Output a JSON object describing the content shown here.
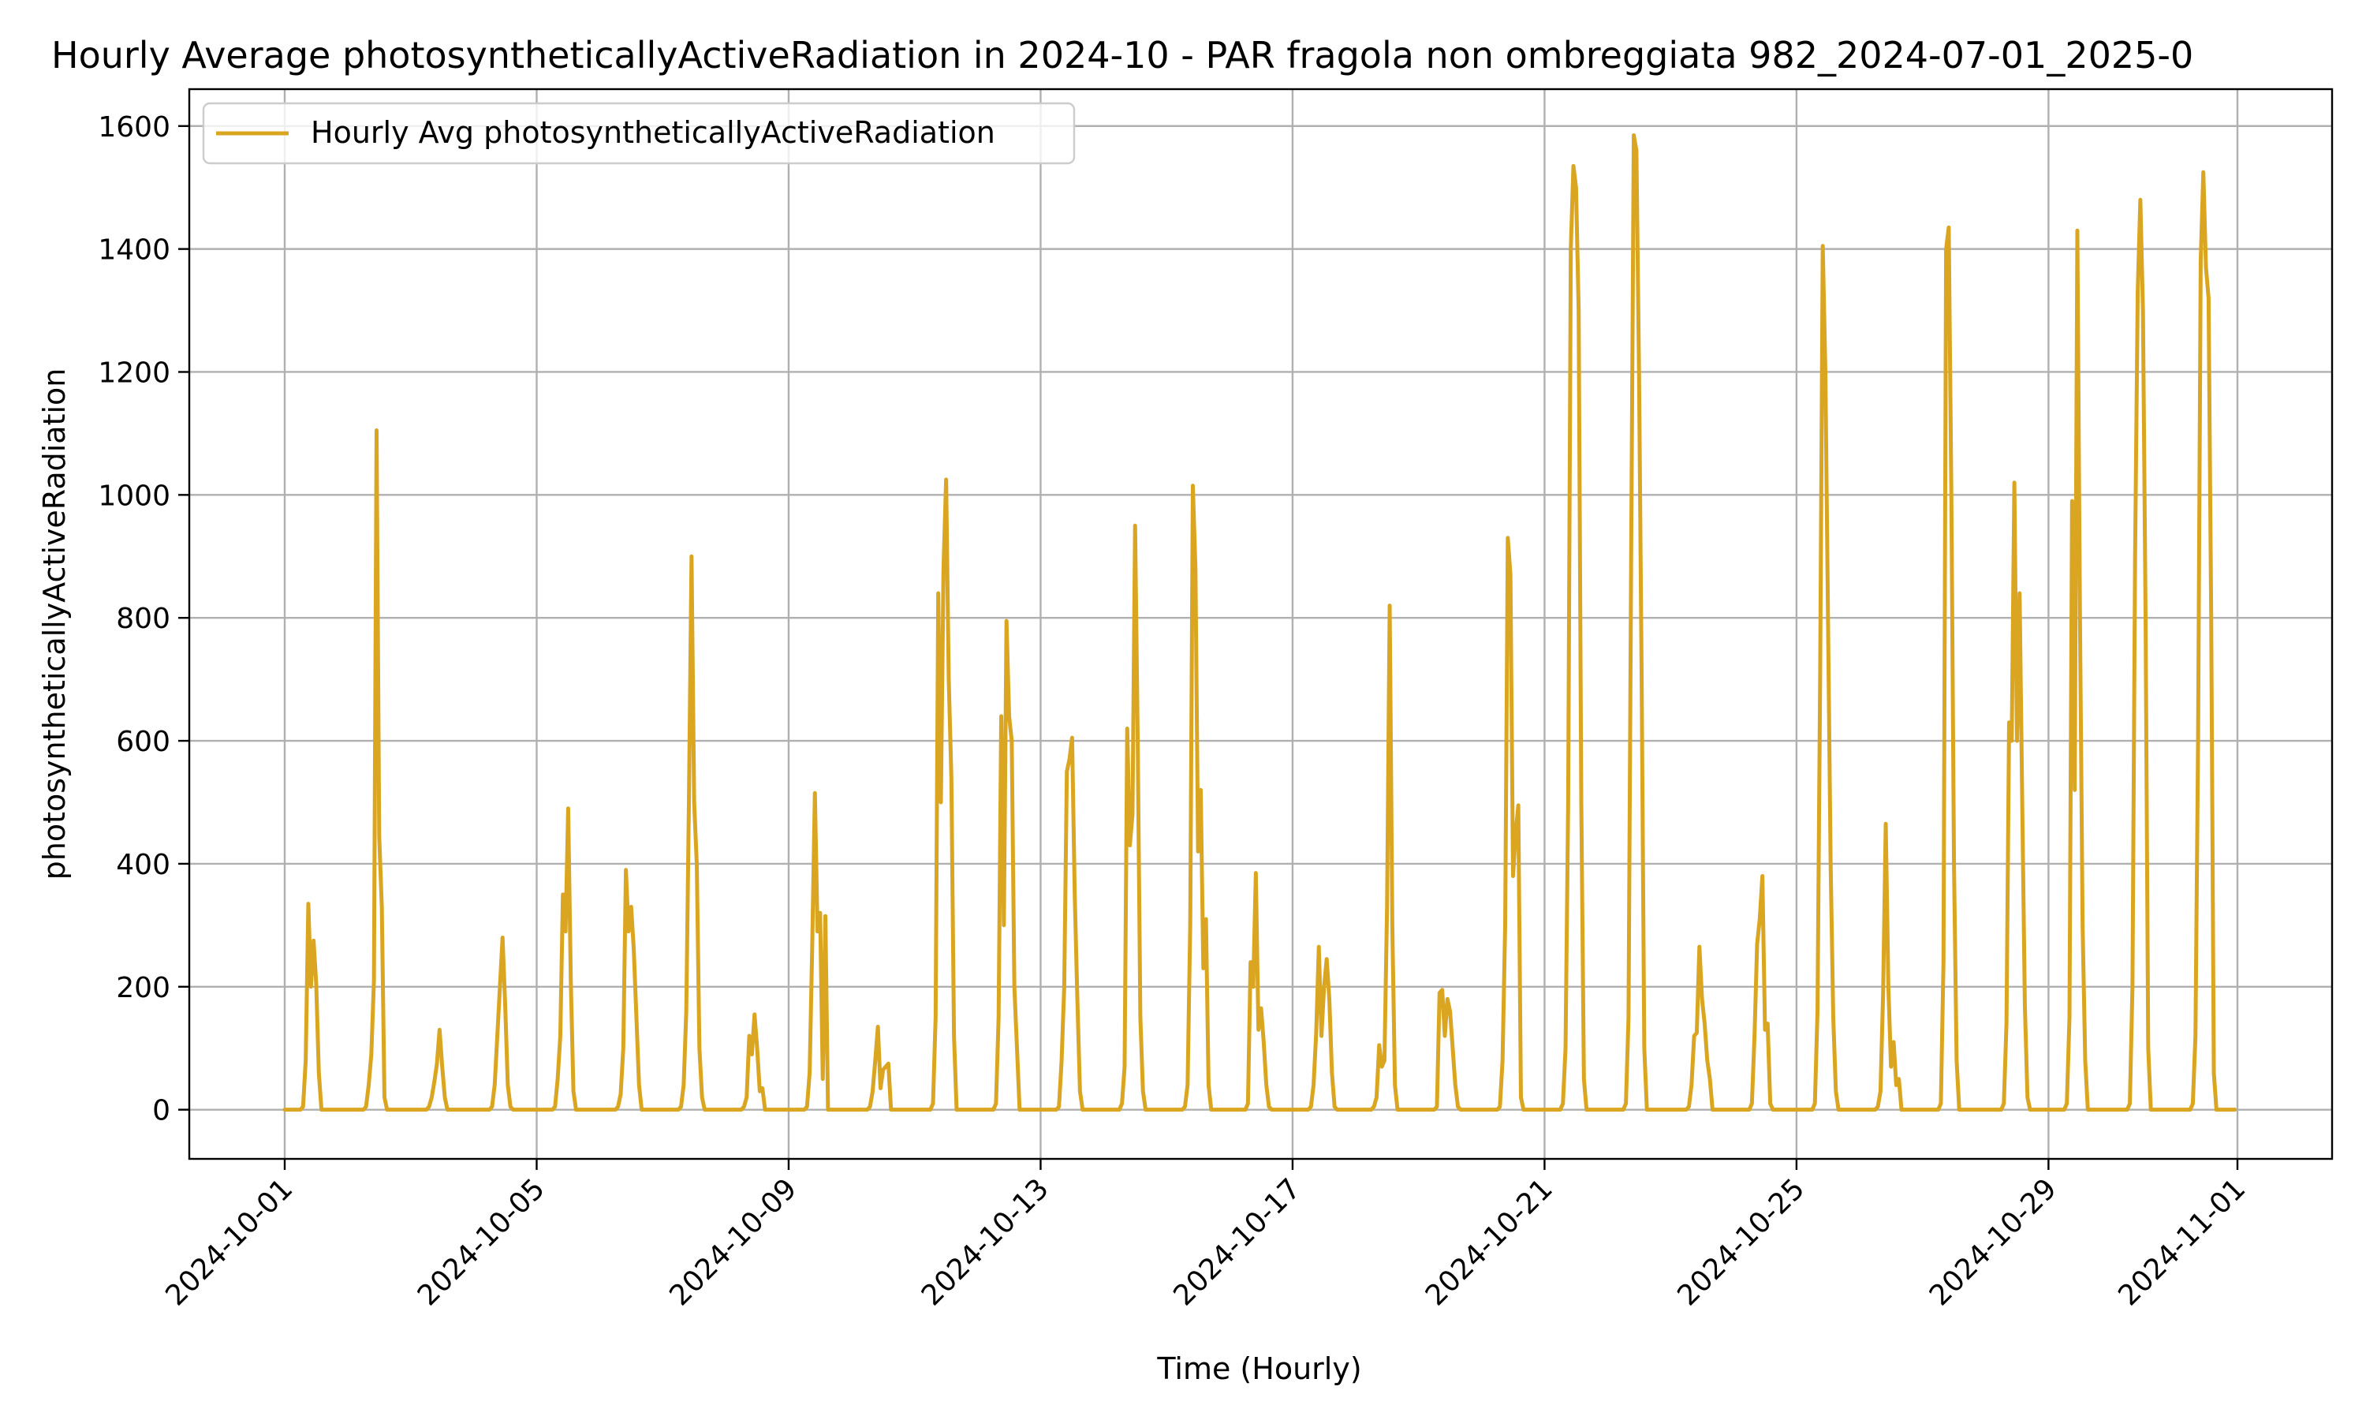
{
  "chart_data": {
    "type": "line",
    "title": "Hourly Average photosyntheticallyActiveRadiation in 2024-10 - PAR fragola non ombreggiata 982_2024-07-01_2025-0",
    "xlabel": "Time (Hourly)",
    "ylabel": "photosyntheticallyActiveRadiation",
    "x_range": [
      "2024-10-01",
      "2024-11-01"
    ],
    "ylim": [
      -80,
      1660
    ],
    "y_ticks": [
      0,
      200,
      400,
      600,
      800,
      1000,
      1200,
      1400,
      1600
    ],
    "x_ticks": [
      "2024-10-01",
      "2024-10-05",
      "2024-10-09",
      "2024-10-13",
      "2024-10-17",
      "2024-10-21",
      "2024-10-25",
      "2024-10-29",
      "2024-11-01"
    ],
    "grid": true,
    "legend_position": "upper-left",
    "series": [
      {
        "name": "Hourly Avg photosyntheticallyActiveRadiation",
        "color": "#DAA520",
        "daily_profiles": [
          [
            0,
            0,
            0,
            0,
            0,
            0,
            0,
            5,
            80,
            335,
            200,
            275,
            205,
            60,
            0,
            0,
            0,
            0,
            0,
            0,
            0,
            0,
            0,
            0
          ],
          [
            0,
            0,
            0,
            0,
            0,
            0,
            0,
            5,
            40,
            90,
            210,
            1105,
            445,
            330,
            20,
            0,
            0,
            0,
            0,
            0,
            0,
            0,
            0,
            0
          ],
          [
            0,
            0,
            0,
            0,
            0,
            0,
            0,
            5,
            20,
            45,
            75,
            130,
            70,
            20,
            0,
            0,
            0,
            0,
            0,
            0,
            0,
            0,
            0,
            0
          ],
          [
            0,
            0,
            0,
            0,
            0,
            0,
            0,
            5,
            40,
            120,
            200,
            280,
            170,
            40,
            5,
            0,
            0,
            0,
            0,
            0,
            0,
            0,
            0,
            0
          ],
          [
            0,
            0,
            0,
            0,
            0,
            0,
            0,
            5,
            50,
            120,
            350,
            290,
            490,
            210,
            30,
            0,
            0,
            0,
            0,
            0,
            0,
            0,
            0,
            0
          ],
          [
            0,
            0,
            0,
            0,
            0,
            0,
            0,
            5,
            25,
            100,
            390,
            290,
            330,
            260,
            150,
            40,
            0,
            0,
            0,
            0,
            0,
            0,
            0,
            0
          ],
          [
            0,
            0,
            0,
            0,
            0,
            0,
            0,
            5,
            40,
            160,
            500,
            900,
            500,
            400,
            100,
            20,
            0,
            0,
            0,
            0,
            0,
            0,
            0,
            0
          ],
          [
            0,
            0,
            0,
            0,
            0,
            0,
            0,
            5,
            20,
            120,
            90,
            155,
            100,
            30,
            35,
            0,
            0,
            0,
            0,
            0,
            0,
            0,
            0,
            0
          ],
          [
            0,
            0,
            0,
            0,
            0,
            0,
            0,
            5,
            60,
            270,
            515,
            290,
            320,
            50,
            315,
            0,
            0,
            0,
            0,
            0,
            0,
            0,
            0,
            0
          ],
          [
            0,
            0,
            0,
            0,
            0,
            0,
            0,
            5,
            30,
            80,
            135,
            35,
            65,
            70,
            75,
            0,
            0,
            0,
            0,
            0,
            0,
            0,
            0,
            0
          ],
          [
            0,
            0,
            0,
            0,
            0,
            0,
            0,
            10,
            150,
            840,
            500,
            880,
            1025,
            700,
            540,
            120,
            0,
            0,
            0,
            0,
            0,
            0,
            0,
            0
          ],
          [
            0,
            0,
            0,
            0,
            0,
            0,
            0,
            10,
            150,
            640,
            300,
            795,
            640,
            600,
            200,
            100,
            0,
            0,
            0,
            0,
            0,
            0,
            0,
            0
          ],
          [
            0,
            0,
            0,
            0,
            0,
            0,
            0,
            5,
            80,
            200,
            550,
            570,
            605,
            350,
            180,
            30,
            0,
            0,
            0,
            0,
            0,
            0,
            0,
            0
          ],
          [
            0,
            0,
            0,
            0,
            0,
            0,
            0,
            10,
            70,
            620,
            430,
            480,
            950,
            600,
            150,
            30,
            0,
            0,
            0,
            0,
            0,
            0,
            0,
            0
          ],
          [
            0,
            0,
            0,
            0,
            0,
            0,
            0,
            5,
            40,
            300,
            1015,
            880,
            420,
            520,
            230,
            310,
            40,
            0,
            0,
            0,
            0,
            0,
            0,
            0
          ],
          [
            0,
            0,
            0,
            0,
            0,
            0,
            0,
            10,
            240,
            200,
            385,
            130,
            165,
            110,
            40,
            5,
            0,
            0,
            0,
            0,
            0,
            0,
            0,
            0
          ],
          [
            0,
            0,
            0,
            0,
            0,
            0,
            0,
            5,
            40,
            125,
            265,
            120,
            200,
            245,
            180,
            60,
            5,
            0,
            0,
            0,
            0,
            0,
            0,
            0
          ],
          [
            0,
            0,
            0,
            0,
            0,
            0,
            0,
            5,
            20,
            105,
            70,
            80,
            330,
            820,
            300,
            40,
            0,
            0,
            0,
            0,
            0,
            0,
            0,
            0
          ],
          [
            0,
            0,
            0,
            0,
            0,
            0,
            0,
            5,
            190,
            195,
            120,
            180,
            160,
            100,
            40,
            5,
            0,
            0,
            0,
            0,
            0,
            0,
            0,
            0
          ],
          [
            0,
            0,
            0,
            0,
            0,
            0,
            0,
            5,
            80,
            300,
            930,
            870,
            380,
            450,
            495,
            20,
            0,
            0,
            0,
            0,
            0,
            0,
            0,
            0
          ],
          [
            0,
            0,
            0,
            0,
            0,
            0,
            0,
            10,
            100,
            500,
            1400,
            1535,
            1500,
            1300,
            500,
            50,
            0,
            0,
            0,
            0,
            0,
            0,
            0,
            0
          ],
          [
            0,
            0,
            0,
            0,
            0,
            0,
            0,
            10,
            150,
            900,
            1585,
            1560,
            1200,
            700,
            100,
            0,
            0,
            0,
            0,
            0,
            0,
            0,
            0,
            0
          ],
          [
            0,
            0,
            0,
            0,
            0,
            0,
            0,
            5,
            40,
            120,
            125,
            265,
            180,
            140,
            80,
            50,
            0,
            0,
            0,
            0,
            0,
            0,
            0,
            0
          ],
          [
            0,
            0,
            0,
            0,
            0,
            0,
            0,
            10,
            120,
            270,
            310,
            380,
            130,
            140,
            10,
            0,
            0,
            0,
            0,
            0,
            0,
            0,
            0,
            0
          ],
          [
            0,
            0,
            0,
            0,
            0,
            0,
            0,
            10,
            160,
            700,
            1405,
            1200,
            800,
            400,
            150,
            30,
            0,
            0,
            0,
            0,
            0,
            0,
            0,
            0
          ],
          [
            0,
            0,
            0,
            0,
            0,
            0,
            0,
            5,
            30,
            190,
            465,
            200,
            70,
            110,
            40,
            50,
            0,
            0,
            0,
            0,
            0,
            0,
            0,
            0
          ],
          [
            0,
            0,
            0,
            0,
            0,
            0,
            0,
            10,
            240,
            1400,
            1435,
            1000,
            400,
            80,
            0,
            0,
            0,
            0,
            0,
            0,
            0,
            0,
            0,
            0
          ],
          [
            0,
            0,
            0,
            0,
            0,
            0,
            0,
            10,
            140,
            630,
            600,
            1020,
            600,
            840,
            500,
            170,
            20,
            0,
            0,
            0,
            0,
            0,
            0,
            0
          ],
          [
            0,
            0,
            0,
            0,
            0,
            0,
            0,
            10,
            150,
            990,
            520,
            1430,
            800,
            300,
            80,
            0,
            0,
            0,
            0,
            0,
            0,
            0,
            0,
            0
          ],
          [
            0,
            0,
            0,
            0,
            0,
            0,
            0,
            10,
            200,
            900,
            1330,
            1480,
            1300,
            800,
            100,
            0,
            0,
            0,
            0,
            0,
            0,
            0,
            0,
            0
          ],
          [
            0,
            0,
            0,
            0,
            0,
            0,
            0,
            10,
            120,
            600,
            1380,
            1525,
            1370,
            1320,
            800,
            60,
            0,
            0,
            0,
            0,
            0,
            0,
            0,
            0
          ]
        ]
      }
    ]
  }
}
